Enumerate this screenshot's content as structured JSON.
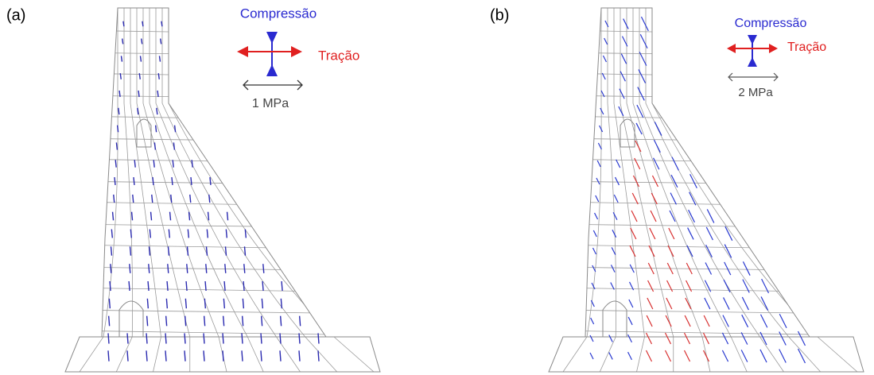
{
  "panels": [
    {
      "label": "(a)",
      "legend": {
        "compression": "Compressão",
        "tension": "Tração",
        "scale": "1 MPa"
      }
    },
    {
      "label": "(b)",
      "legend": {
        "compression": "Compressão",
        "tension": "Tração",
        "scale": "2 MPa"
      }
    }
  ]
}
